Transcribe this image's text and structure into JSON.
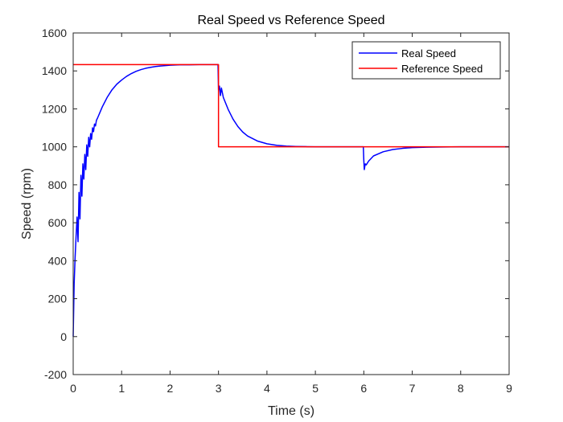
{
  "chart_data": {
    "type": "line",
    "title": "Real Speed vs Reference Speed",
    "xlabel": "Time (s)",
    "ylabel": "Speed (rpm)",
    "xlim": [
      0,
      9
    ],
    "ylim": [
      -200,
      1600
    ],
    "xticks": [
      0,
      1,
      2,
      3,
      4,
      5,
      6,
      7,
      8,
      9
    ],
    "yticks": [
      -200,
      0,
      200,
      400,
      600,
      800,
      1000,
      1200,
      1400,
      1600
    ],
    "grid": false,
    "legend_position": "top-right",
    "series": [
      {
        "name": "Real Speed",
        "color": "#0000ff",
        "x": [
          0,
          0.02,
          0.04,
          0.06,
          0.08,
          0.1,
          0.12,
          0.14,
          0.16,
          0.18,
          0.2,
          0.22,
          0.24,
          0.26,
          0.28,
          0.3,
          0.32,
          0.34,
          0.36,
          0.38,
          0.4,
          0.42,
          0.44,
          0.46,
          0.48,
          0.5,
          0.55,
          0.6,
          0.7,
          0.8,
          0.9,
          1.0,
          1.1,
          1.2,
          1.3,
          1.4,
          1.5,
          1.6,
          1.7,
          1.8,
          1.9,
          2.0,
          2.2,
          2.4,
          2.6,
          2.8,
          2.99,
          3.0,
          3.02,
          3.04,
          3.06,
          3.1,
          3.2,
          3.3,
          3.4,
          3.5,
          3.6,
          3.8,
          4.0,
          4.2,
          4.4,
          4.6,
          4.8,
          5.0,
          5.2,
          5.5,
          5.8,
          5.99,
          6.0,
          6.01,
          6.03,
          6.05,
          6.1,
          6.2,
          6.4,
          6.6,
          6.8,
          7.0,
          7.3,
          7.6,
          8.0,
          8.5,
          9.0
        ],
        "values": [
          0,
          280,
          420,
          530,
          630,
          500,
          760,
          620,
          850,
          740,
          910,
          830,
          960,
          880,
          1010,
          950,
          1050,
          1000,
          1070,
          1040,
          1100,
          1080,
          1120,
          1110,
          1140,
          1150,
          1180,
          1210,
          1260,
          1300,
          1330,
          1352,
          1371,
          1386,
          1398,
          1407,
          1414,
          1419,
          1423,
          1426,
          1428,
          1430,
          1432,
          1432,
          1433,
          1433,
          1433,
          1300,
          1320,
          1270,
          1310,
          1260,
          1197,
          1146,
          1107,
          1078,
          1057,
          1031,
          1016,
          1008,
          1004,
          1002,
          1001,
          1000,
          1000,
          1000,
          1000,
          1000,
          930,
          880,
          910,
          905,
          925,
          952,
          974,
          986,
          992,
          996,
          998,
          999,
          1000,
          1000,
          1000
        ]
      },
      {
        "name": "Reference Speed",
        "color": "#ff0000",
        "x": [
          0,
          3,
          3,
          9
        ],
        "values": [
          1433,
          1433,
          1000,
          1000
        ]
      }
    ]
  }
}
